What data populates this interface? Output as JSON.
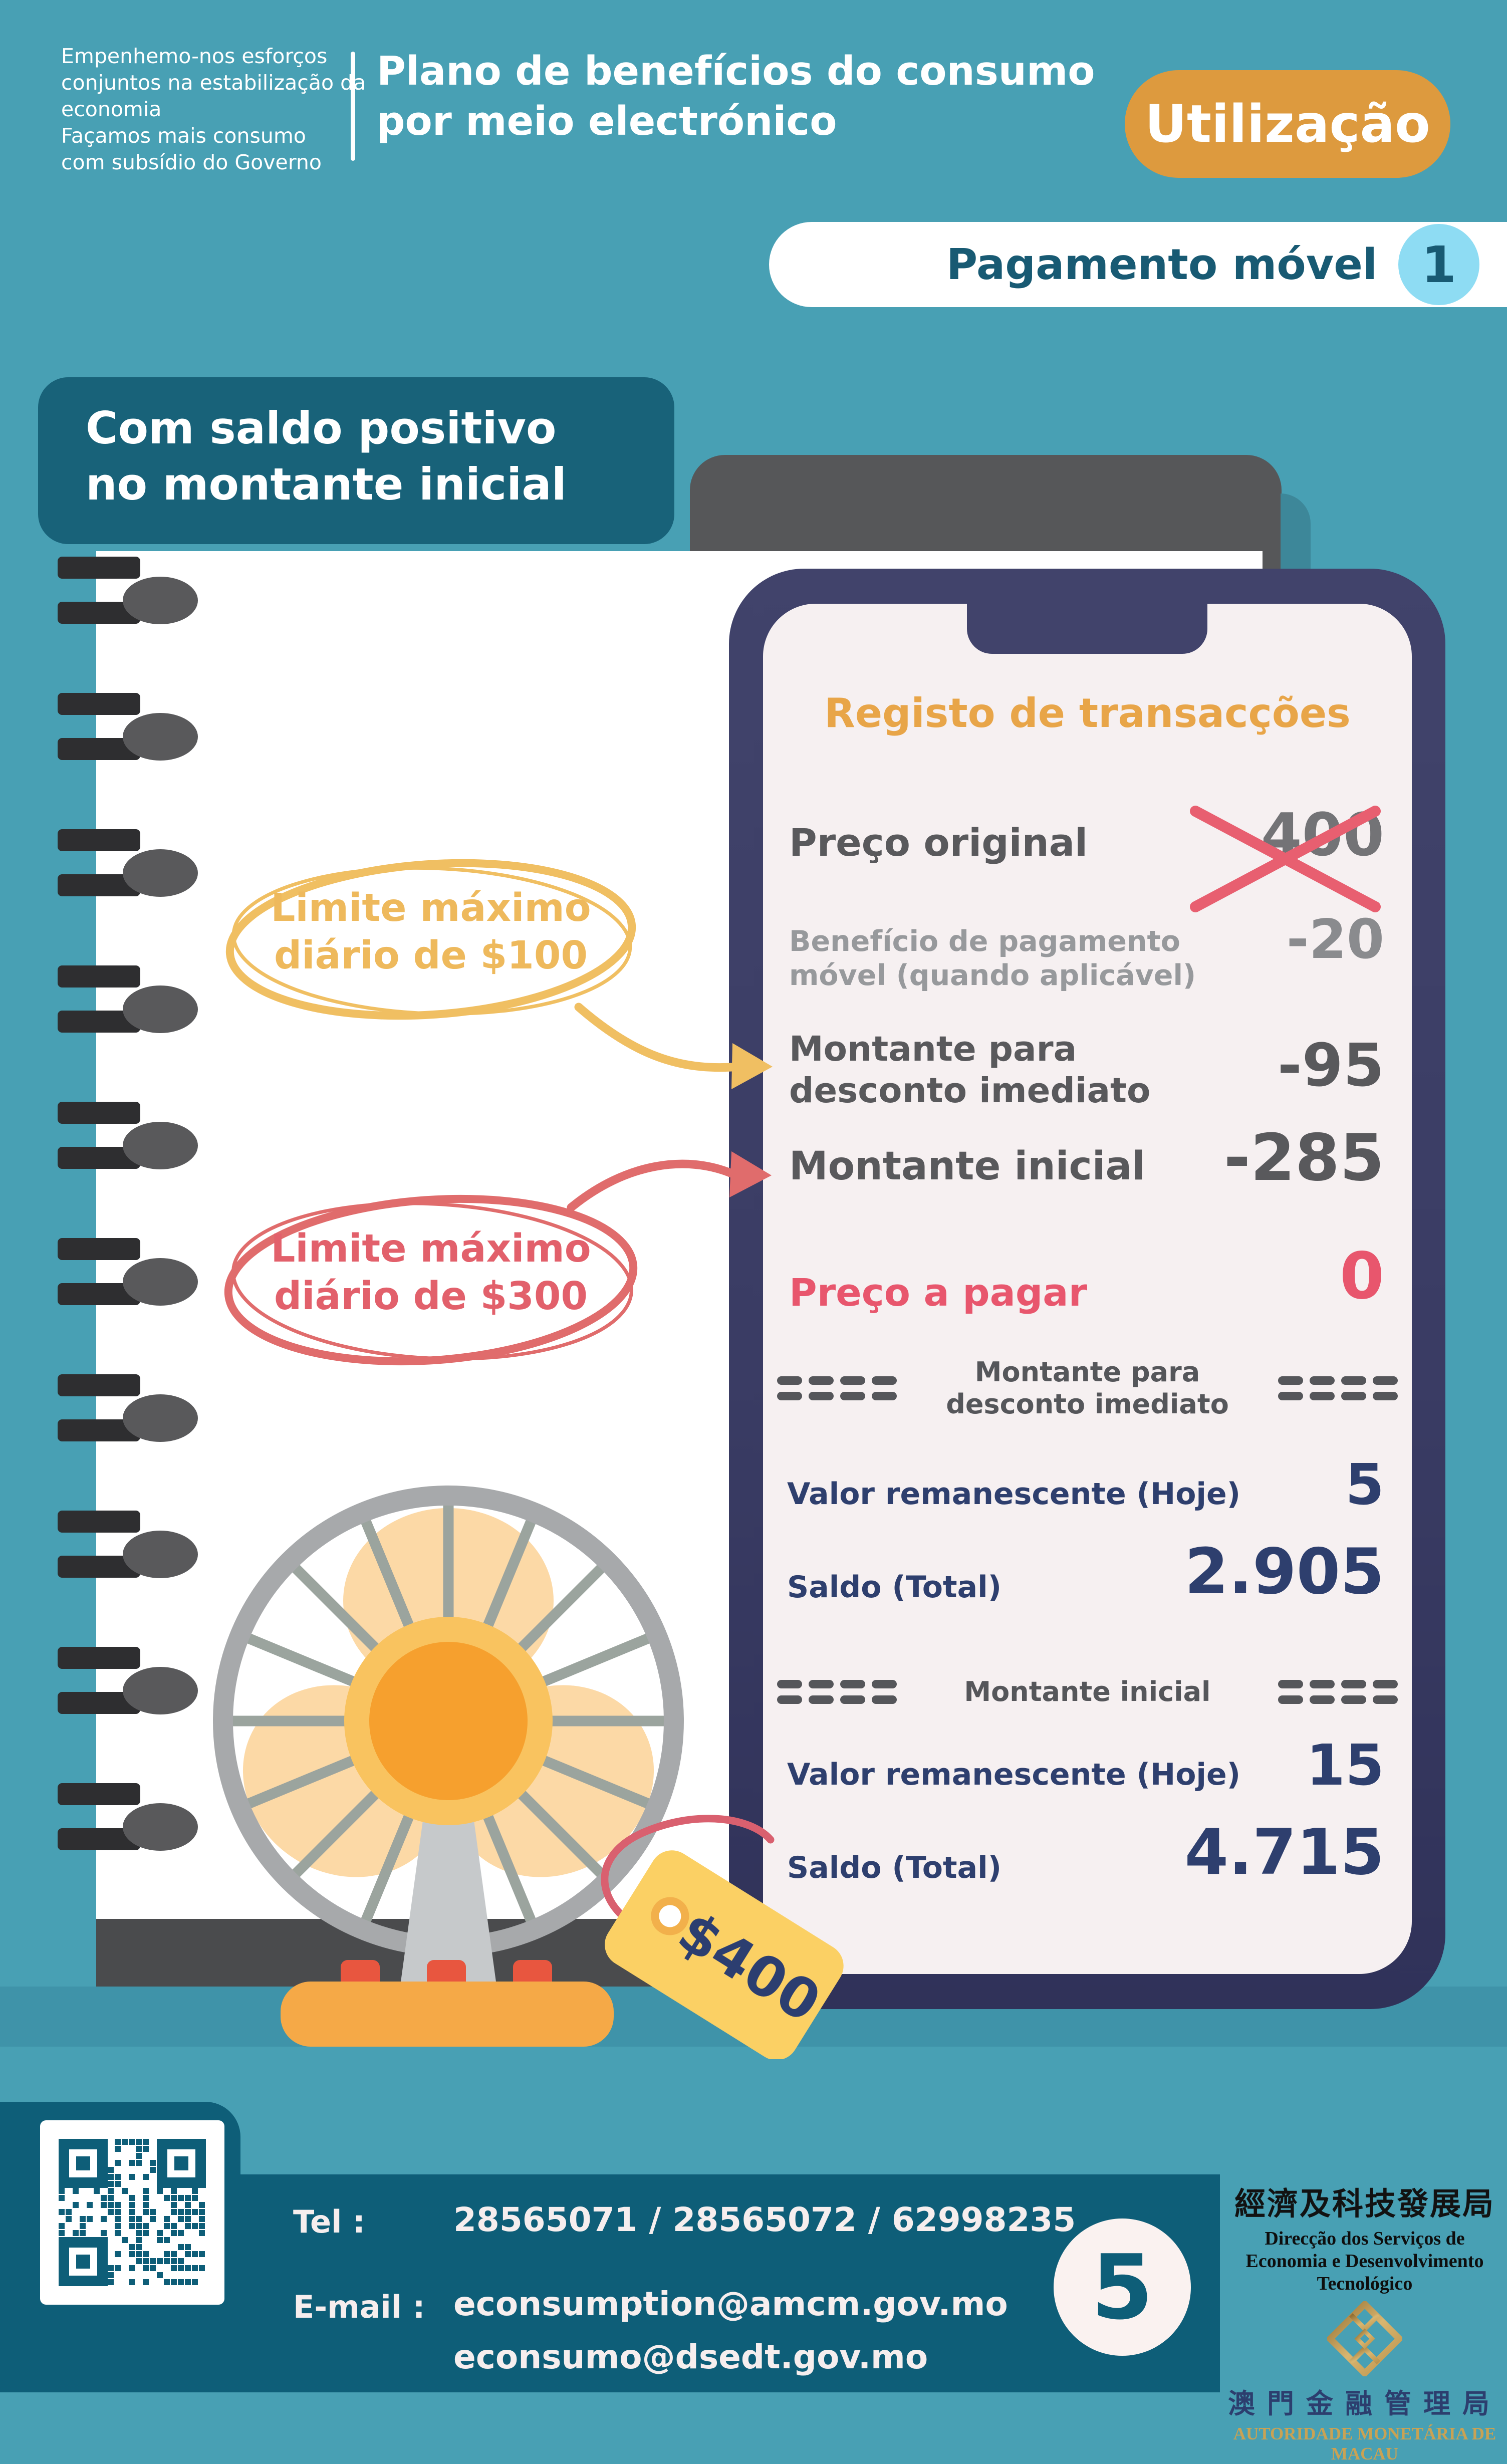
{
  "page": {
    "bg": "#48a0b4",
    "accent_orange": "#dd9a3e",
    "accent_pink": "#e8566d",
    "accent_navy": "#2e3f6e",
    "footer_teal": "#0e5e78"
  },
  "header": {
    "slogan": "Empenhemo-nos esforços\nconjuntos na estabilização da\neconomia\nFaçamos mais consumo\ncom subsídio do Governo",
    "title": "Plano de benefícios do consumo\npor meio electrónico",
    "badge": "Utilização",
    "subtitle": "Pagamento móvel",
    "subtitle_number": "1"
  },
  "scenario_label": "Com saldo positivo\nno montante inicial",
  "annotations": {
    "yellow": {
      "text": "Limite máximo\ndiário de $100",
      "color": "#efb95d"
    },
    "red": {
      "text": "Limite máximo\ndiário de $300",
      "color": "#e2606b"
    }
  },
  "price_tag": "$400",
  "phone": {
    "title": "Registo de transacções",
    "original_price": {
      "label": "Preço original",
      "value": "400"
    },
    "mobile_benefit": {
      "label": "Benefício de pagamento\nmóvel (quando aplicável)",
      "value": "-20"
    },
    "instant_discount": {
      "label": "Montante para\ndesconto imediato",
      "value": "-95"
    },
    "initial_amount": {
      "label": "Montante inicial",
      "value": "-285"
    },
    "price_to_pay": {
      "label": "Preço a pagar",
      "value": "0"
    },
    "section1": {
      "heading": "Montante para\ndesconto imediato",
      "remaining": {
        "label": "Valor remanescente (Hoje)",
        "value": "5"
      },
      "balance": {
        "label": "Saldo (Total)",
        "value": "2.905"
      }
    },
    "section2": {
      "heading": "Montante inicial",
      "remaining": {
        "label": "Valor remanescente (Hoje)",
        "value": "15"
      },
      "balance": {
        "label": "Saldo (Total)",
        "value": "4.715"
      }
    }
  },
  "footer": {
    "tel_label": "Tel :",
    "tel_numbers": "28565071 / 28565072 / 62998235",
    "email_label": "E-mail :",
    "email1": "econsumption@amcm.gov.mo",
    "email2": "econsumo@dsedt.gov.mo",
    "page_number": "5"
  },
  "logos": {
    "dsedt_zh": "經濟及科技發展局",
    "dsedt_pt": "Direcção dos Serviços de\nEconomia e Desenvolvimento Tecnológico",
    "amcm_zh": "澳門金融管理局",
    "amcm_pt": "AUTORIDADE MONETÁRIA DE MACAU"
  }
}
